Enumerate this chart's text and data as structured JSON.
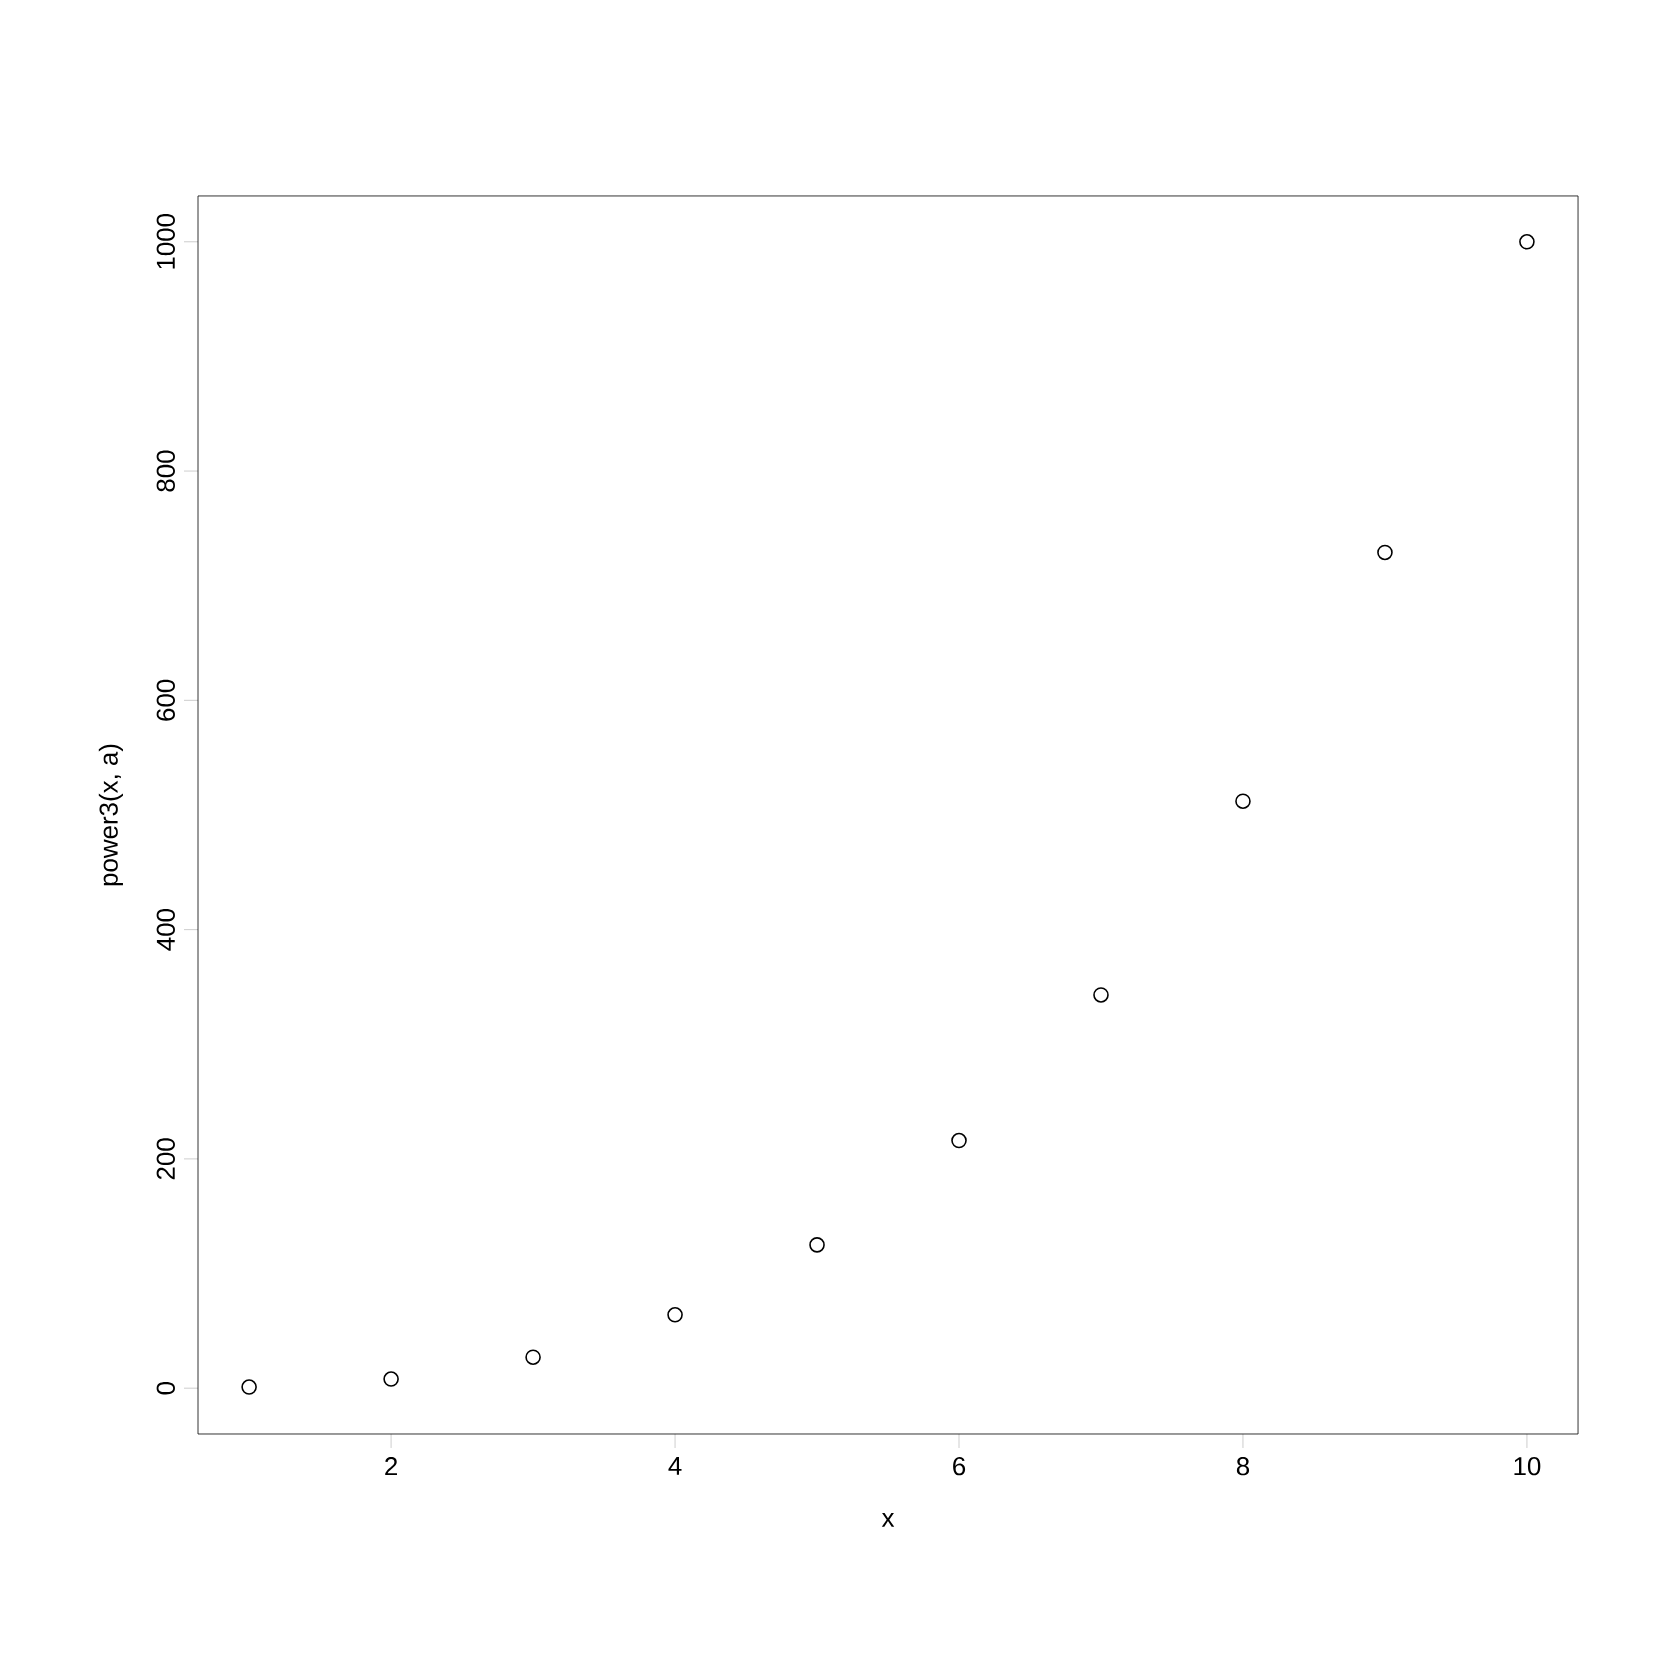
{
  "chart_data": {
    "type": "scatter",
    "xlabel": "x",
    "ylabel": "power3(x, a)",
    "x": [
      1,
      2,
      3,
      4,
      5,
      6,
      7,
      8,
      9,
      10
    ],
    "values": [
      1,
      8,
      27,
      64,
      125,
      216,
      343,
      512,
      729,
      1000
    ],
    "color": "#000000",
    "marker": "circle",
    "grid": false,
    "xlim": [
      0.64,
      10.36
    ],
    "ylim": [
      -39.96,
      1039.96
    ],
    "xticks": [
      2,
      4,
      6,
      8,
      10
    ],
    "yticks": [
      0,
      200,
      400,
      600,
      800,
      1000
    ]
  }
}
